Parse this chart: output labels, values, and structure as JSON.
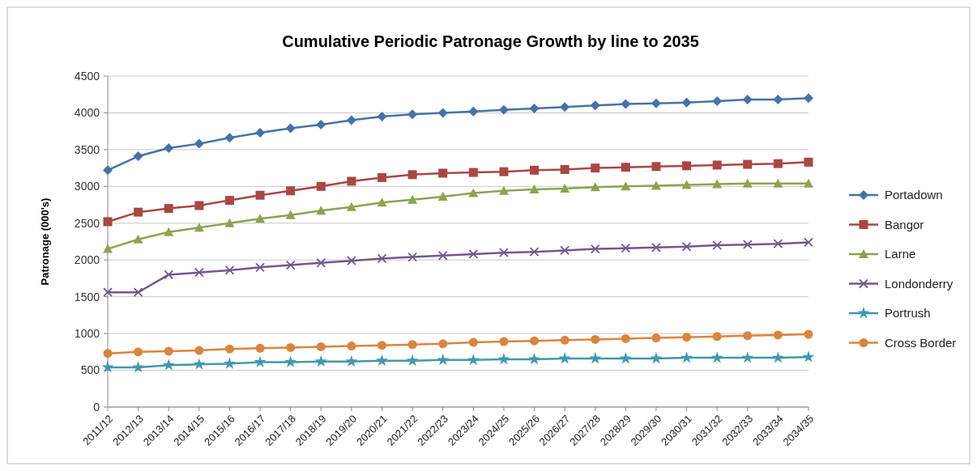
{
  "chart_data": {
    "type": "line",
    "title": "Cumulative Periodic Patronage Growth by line to 2035",
    "ylabel": "Patronage (000's)",
    "categories": [
      "2011/12",
      "2012/13",
      "2013/14",
      "2014/15",
      "2015/16",
      "2016/17",
      "2017/18",
      "2018/19",
      "2019/20",
      "2020/21",
      "2021/22",
      "2022/23",
      "2023/24",
      "2024/25",
      "2025/26",
      "2026/27",
      "2027/28",
      "2028/29",
      "2029/30",
      "2030/31",
      "2031/32",
      "2032/33",
      "2033/34",
      "2034/35"
    ],
    "series": [
      {
        "name": "Portadown",
        "color": "#4572a7",
        "marker": "diamond",
        "values": [
          3220,
          3410,
          3520,
          3580,
          3660,
          3730,
          3790,
          3840,
          3900,
          3950,
          3980,
          4000,
          4020,
          4040,
          4060,
          4080,
          4100,
          4120,
          4130,
          4140,
          4160,
          4180,
          4180,
          4200
        ]
      },
      {
        "name": "Bangor",
        "color": "#aa4643",
        "marker": "square",
        "values": [
          2520,
          2650,
          2700,
          2740,
          2810,
          2880,
          2940,
          3000,
          3070,
          3120,
          3160,
          3180,
          3190,
          3200,
          3220,
          3230,
          3250,
          3260,
          3270,
          3280,
          3290,
          3300,
          3310,
          3330
        ]
      },
      {
        "name": "Larne",
        "color": "#89a54e",
        "marker": "triangle",
        "values": [
          2150,
          2280,
          2380,
          2440,
          2500,
          2560,
          2610,
          2670,
          2720,
          2780,
          2820,
          2860,
          2910,
          2940,
          2960,
          2970,
          2990,
          3000,
          3010,
          3020,
          3030,
          3040,
          3040,
          3040
        ]
      },
      {
        "name": "Londonderry",
        "color": "#71588f",
        "marker": "cross",
        "values": [
          1560,
          1560,
          1800,
          1830,
          1860,
          1900,
          1930,
          1960,
          1990,
          2020,
          2040,
          2060,
          2080,
          2100,
          2110,
          2130,
          2150,
          2160,
          2170,
          2180,
          2200,
          2210,
          2220,
          2240
        ]
      },
      {
        "name": "Portrush",
        "color": "#4198af",
        "marker": "star",
        "values": [
          540,
          540,
          570,
          580,
          590,
          610,
          610,
          620,
          620,
          630,
          630,
          640,
          640,
          650,
          650,
          660,
          660,
          660,
          660,
          670,
          670,
          670,
          670,
          680
        ]
      },
      {
        "name": "Cross Border",
        "color": "#db843d",
        "marker": "circle",
        "values": [
          730,
          750,
          760,
          770,
          790,
          800,
          810,
          820,
          830,
          840,
          850,
          860,
          880,
          890,
          900,
          910,
          920,
          930,
          940,
          950,
          960,
          970,
          980,
          990
        ]
      }
    ],
    "ylim": [
      0,
      4500
    ],
    "yticks": [
      0,
      500,
      1000,
      1500,
      2000,
      2500,
      3000,
      3500,
      4000,
      4500
    ],
    "grid": "y",
    "legend": "right",
    "line_style": "solid"
  }
}
